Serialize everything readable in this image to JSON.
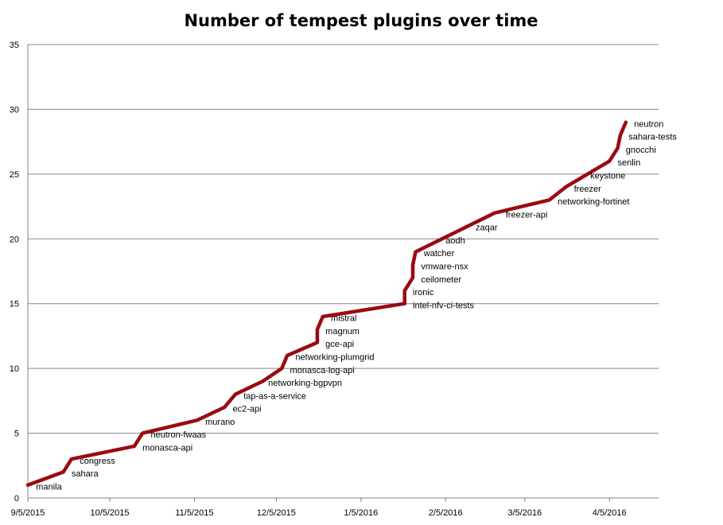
{
  "chart_data": {
    "type": "line",
    "title": "Number of tempest plugins over time",
    "xlabel": "",
    "ylabel": "",
    "xlim": [
      "2015-09-05",
      "2016-04-23"
    ],
    "ylim": [
      0,
      35
    ],
    "yticks": [
      0,
      5,
      10,
      15,
      20,
      25,
      30,
      35
    ],
    "xticks": [
      "9/5/2015",
      "10/5/2015",
      "11/5/2015",
      "12/5/2015",
      "1/5/2016",
      "2/5/2016",
      "3/5/2016",
      "4/5/2016"
    ],
    "xtick_dates": [
      "2015-09-05",
      "2015-10-05",
      "2015-11-05",
      "2015-12-05",
      "2016-01-05",
      "2016-02-05",
      "2016-03-05",
      "2016-04-05"
    ],
    "grid": "horizontal",
    "legend": "none",
    "line_color": "#9B0A0F",
    "points": [
      {
        "date": "2015-09-05",
        "count": 1
      },
      {
        "date": "2015-09-18",
        "count": 2
      },
      {
        "date": "2015-09-21",
        "count": 3
      },
      {
        "date": "2015-10-14",
        "count": 4
      },
      {
        "date": "2015-10-17",
        "count": 5
      },
      {
        "date": "2015-11-06",
        "count": 6
      },
      {
        "date": "2015-11-16",
        "count": 7
      },
      {
        "date": "2015-11-20",
        "count": 8
      },
      {
        "date": "2015-11-30",
        "count": 9
      },
      {
        "date": "2015-12-07",
        "count": 10
      },
      {
        "date": "2015-12-09",
        "count": 11
      },
      {
        "date": "2015-12-20",
        "count": 12
      },
      {
        "date": "2015-12-20",
        "count": 13
      },
      {
        "date": "2015-12-22",
        "count": 14
      },
      {
        "date": "2016-01-21",
        "count": 15
      },
      {
        "date": "2016-01-21",
        "count": 16
      },
      {
        "date": "2016-01-24",
        "count": 17
      },
      {
        "date": "2016-01-24",
        "count": 18
      },
      {
        "date": "2016-01-25",
        "count": 19
      },
      {
        "date": "2016-02-23",
        "count": 22
      },
      {
        "date": "2016-03-14",
        "count": 23
      },
      {
        "date": "2016-03-20",
        "count": 24
      },
      {
        "date": "2016-04-05",
        "count": 26
      },
      {
        "date": "2016-04-08",
        "count": 27
      },
      {
        "date": "2016-04-09",
        "count": 28
      },
      {
        "date": "2016-04-11",
        "count": 29
      }
    ],
    "annotations": [
      {
        "text": "manila",
        "date": "2015-09-08",
        "count": 0.9
      },
      {
        "text": "sahara",
        "date": "2015-09-21",
        "count": 1.9
      },
      {
        "text": "congress",
        "date": "2015-09-24",
        "count": 2.9
      },
      {
        "text": "neutron-fwaas",
        "date": "2015-10-20",
        "count": 4.9
      },
      {
        "text": "monasca-api",
        "date": "2015-10-17",
        "count": 3.9
      },
      {
        "text": "murano",
        "date": "2015-11-09",
        "count": 5.9
      },
      {
        "text": "ec2-api",
        "date": "2015-11-19",
        "count": 6.9
      },
      {
        "text": "tap-as-a-service",
        "date": "2015-11-23",
        "count": 7.9
      },
      {
        "text": "networking-bgpvpn",
        "date": "2015-12-02",
        "count": 8.9
      },
      {
        "text": "monasca-log-api",
        "date": "2015-12-10",
        "count": 9.9
      },
      {
        "text": "networking-plumgrid",
        "date": "2015-12-12",
        "count": 10.9
      },
      {
        "text": "gce-api",
        "date": "2015-12-23",
        "count": 11.9
      },
      {
        "text": "magnum",
        "date": "2015-12-23",
        "count": 12.9
      },
      {
        "text": "mistral",
        "date": "2015-12-25",
        "count": 13.9
      },
      {
        "text": "intel-nfv-ci-tests",
        "date": "2016-01-24",
        "count": 14.9
      },
      {
        "text": "ironic",
        "date": "2016-01-24",
        "count": 15.9
      },
      {
        "text": "ceilometer",
        "date": "2016-01-27",
        "count": 16.9
      },
      {
        "text": "vmware-nsx",
        "date": "2016-01-27",
        "count": 17.9
      },
      {
        "text": "watcher",
        "date": "2016-01-28",
        "count": 18.9
      },
      {
        "text": "aodh",
        "date": "2016-02-05",
        "count": 19.9
      },
      {
        "text": "zaqar",
        "date": "2016-02-16",
        "count": 20.9
      },
      {
        "text": "freezer-api",
        "date": "2016-02-27",
        "count": 21.9
      },
      {
        "text": "networking-fortinet",
        "date": "2016-03-17",
        "count": 22.9
      },
      {
        "text": "freezer",
        "date": "2016-03-23",
        "count": 23.9
      },
      {
        "text": "keystone",
        "date": "2016-03-29",
        "count": 24.9
      },
      {
        "text": "senlin",
        "date": "2016-04-08",
        "count": 25.9
      },
      {
        "text": "gnocchi",
        "date": "2016-04-11",
        "count": 26.9
      },
      {
        "text": "sahara-tests",
        "date": "2016-04-12",
        "count": 27.9
      },
      {
        "text": "neutron",
        "date": "2016-04-14",
        "count": 28.9
      }
    ]
  }
}
